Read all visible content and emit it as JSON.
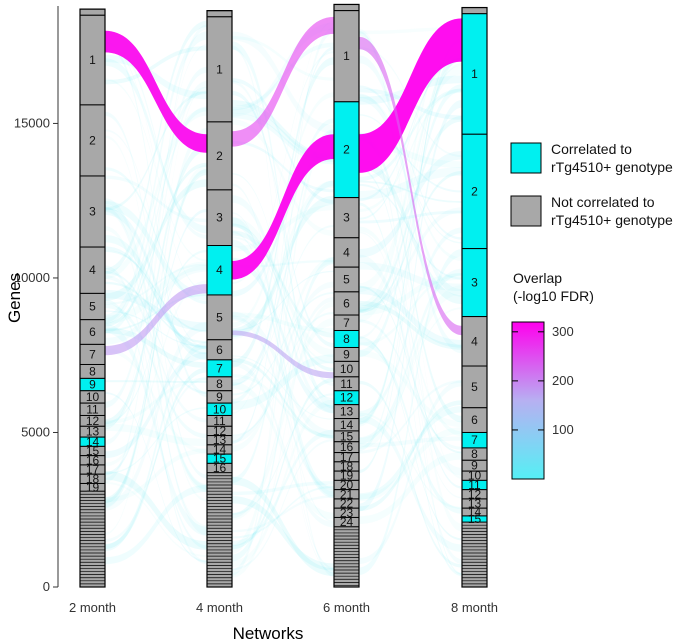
{
  "chart_data": {
    "type": "alluvial",
    "xlabel": "Networks",
    "ylabel": "Genes",
    "ylim": [
      0,
      18800
    ],
    "yticks": [
      0,
      5000,
      10000,
      15000
    ],
    "grid": false,
    "networks": [
      {
        "label": "2 month",
        "modules": [
          {
            "label": "1",
            "y0": 15600,
            "y1": 18500,
            "correlated": false
          },
          {
            "label": "2",
            "y0": 13300,
            "y1": 15600,
            "correlated": false
          },
          {
            "label": "3",
            "y0": 11000,
            "y1": 13300,
            "correlated": false
          },
          {
            "label": "4",
            "y0": 9500,
            "y1": 11000,
            "correlated": false
          },
          {
            "label": "5",
            "y0": 8650,
            "y1": 9500,
            "correlated": false
          },
          {
            "label": "6",
            "y0": 7850,
            "y1": 8650,
            "correlated": false
          },
          {
            "label": "7",
            "y0": 7200,
            "y1": 7850,
            "correlated": false
          },
          {
            "label": "8",
            "y0": 6750,
            "y1": 7200,
            "correlated": false
          },
          {
            "label": "9",
            "y0": 6350,
            "y1": 6750,
            "correlated": true
          },
          {
            "label": "10",
            "y0": 5950,
            "y1": 6350,
            "correlated": false
          },
          {
            "label": "11",
            "y0": 5550,
            "y1": 5950,
            "correlated": false
          },
          {
            "label": "12",
            "y0": 5200,
            "y1": 5550,
            "correlated": false
          },
          {
            "label": "13",
            "y0": 4850,
            "y1": 5200,
            "correlated": false
          },
          {
            "label": "14",
            "y0": 4550,
            "y1": 4850,
            "correlated": true
          },
          {
            "label": "15",
            "y0": 4250,
            "y1": 4550,
            "correlated": false
          },
          {
            "label": "16",
            "y0": 3950,
            "y1": 4250,
            "correlated": false
          },
          {
            "label": "17",
            "y0": 3650,
            "y1": 3950,
            "correlated": false
          },
          {
            "label": "18",
            "y0": 3350,
            "y1": 3650,
            "correlated": false
          },
          {
            "label": "19",
            "y0": 3100,
            "y1": 3350,
            "correlated": false
          }
        ]
      },
      {
        "label": "4 month",
        "modules": [
          {
            "label": "1",
            "y0": 15050,
            "y1": 18450,
            "correlated": false
          },
          {
            "label": "2",
            "y0": 12850,
            "y1": 15050,
            "correlated": false
          },
          {
            "label": "3",
            "y0": 11050,
            "y1": 12850,
            "correlated": false
          },
          {
            "label": "4",
            "y0": 9450,
            "y1": 11050,
            "correlated": true
          },
          {
            "label": "5",
            "y0": 8000,
            "y1": 9450,
            "correlated": false
          },
          {
            "label": "6",
            "y0": 7350,
            "y1": 8000,
            "correlated": false
          },
          {
            "label": "7",
            "y0": 6800,
            "y1": 7350,
            "correlated": true
          },
          {
            "label": "8",
            "y0": 6350,
            "y1": 6800,
            "correlated": false
          },
          {
            "label": "9",
            "y0": 5950,
            "y1": 6350,
            "correlated": false
          },
          {
            "label": "10",
            "y0": 5550,
            "y1": 5950,
            "correlated": true
          },
          {
            "label": "11",
            "y0": 5200,
            "y1": 5550,
            "correlated": false
          },
          {
            "label": "12",
            "y0": 4900,
            "y1": 5200,
            "correlated": false
          },
          {
            "label": "13",
            "y0": 4600,
            "y1": 4900,
            "correlated": false
          },
          {
            "label": "14",
            "y0": 4300,
            "y1": 4600,
            "correlated": false
          },
          {
            "label": "15",
            "y0": 4000,
            "y1": 4300,
            "correlated": true
          },
          {
            "label": "16",
            "y0": 3700,
            "y1": 4000,
            "correlated": false
          }
        ]
      },
      {
        "label": "6 month",
        "modules": [
          {
            "label": "1",
            "y0": 15700,
            "y1": 18650,
            "correlated": false
          },
          {
            "label": "2",
            "y0": 12600,
            "y1": 15700,
            "correlated": true
          },
          {
            "label": "3",
            "y0": 11300,
            "y1": 12600,
            "correlated": false
          },
          {
            "label": "4",
            "y0": 10350,
            "y1": 11300,
            "correlated": false
          },
          {
            "label": "5",
            "y0": 9550,
            "y1": 10350,
            "correlated": false
          },
          {
            "label": "6",
            "y0": 8800,
            "y1": 9550,
            "correlated": false
          },
          {
            "label": "7",
            "y0": 8300,
            "y1": 8800,
            "correlated": false
          },
          {
            "label": "8",
            "y0": 7750,
            "y1": 8300,
            "correlated": true
          },
          {
            "label": "9",
            "y0": 7300,
            "y1": 7750,
            "correlated": false
          },
          {
            "label": "10",
            "y0": 6800,
            "y1": 7300,
            "correlated": false
          },
          {
            "label": "11",
            "y0": 6350,
            "y1": 6800,
            "correlated": false
          },
          {
            "label": "12",
            "y0": 5900,
            "y1": 6350,
            "correlated": true
          },
          {
            "label": "13",
            "y0": 5450,
            "y1": 5900,
            "correlated": false
          },
          {
            "label": "14",
            "y0": 5050,
            "y1": 5450,
            "correlated": false
          },
          {
            "label": "15",
            "y0": 4700,
            "y1": 5050,
            "correlated": false
          },
          {
            "label": "16",
            "y0": 4350,
            "y1": 4700,
            "correlated": false
          },
          {
            "label": "17",
            "y0": 4050,
            "y1": 4350,
            "correlated": false
          },
          {
            "label": "18",
            "y0": 3750,
            "y1": 4050,
            "correlated": false
          },
          {
            "label": "19",
            "y0": 3450,
            "y1": 3750,
            "correlated": false
          },
          {
            "label": "20",
            "y0": 3150,
            "y1": 3450,
            "correlated": false
          },
          {
            "label": "21",
            "y0": 2850,
            "y1": 3150,
            "correlated": false
          },
          {
            "label": "22",
            "y0": 2550,
            "y1": 2850,
            "correlated": false
          },
          {
            "label": "23",
            "y0": 2250,
            "y1": 2550,
            "correlated": false
          },
          {
            "label": "24",
            "y0": 1950,
            "y1": 2250,
            "correlated": false
          }
        ]
      },
      {
        "label": "8 month",
        "modules": [
          {
            "label": "1",
            "y0": 14650,
            "y1": 18550,
            "correlated": true
          },
          {
            "label": "2",
            "y0": 10950,
            "y1": 14650,
            "correlated": true
          },
          {
            "label": "3",
            "y0": 8750,
            "y1": 10950,
            "correlated": true
          },
          {
            "label": "4",
            "y0": 7150,
            "y1": 8750,
            "correlated": false
          },
          {
            "label": "5",
            "y0": 5800,
            "y1": 7150,
            "correlated": false
          },
          {
            "label": "6",
            "y0": 5000,
            "y1": 5800,
            "correlated": false
          },
          {
            "label": "7",
            "y0": 4500,
            "y1": 5000,
            "correlated": true
          },
          {
            "label": "8",
            "y0": 4100,
            "y1": 4500,
            "correlated": false
          },
          {
            "label": "9",
            "y0": 3750,
            "y1": 4100,
            "correlated": false
          },
          {
            "label": "10",
            "y0": 3450,
            "y1": 3750,
            "correlated": false
          },
          {
            "label": "11",
            "y0": 3150,
            "y1": 3450,
            "correlated": true
          },
          {
            "label": "12",
            "y0": 2850,
            "y1": 3150,
            "correlated": false
          },
          {
            "label": "13",
            "y0": 2550,
            "y1": 2850,
            "correlated": false
          },
          {
            "label": "14",
            "y0": 2300,
            "y1": 2550,
            "correlated": false
          },
          {
            "label": "15",
            "y0": 2100,
            "y1": 2300,
            "correlated": true
          }
        ]
      }
    ],
    "flows": [
      {
        "from": "2 month",
        "to": "4 month",
        "from_y": [
          17300,
          18000
        ],
        "to_y": [
          14050,
          14650
        ],
        "overlap": 310
      },
      {
        "from": "2 month",
        "to": "4 month",
        "from_y": [
          7500,
          7800
        ],
        "to_y": [
          9500,
          9800
        ],
        "overlap": 180
      },
      {
        "from": "4 month",
        "to": "6 month",
        "from_y": [
          14250,
          14750
        ],
        "to_y": [
          17900,
          18450
        ],
        "overlap": 260
      },
      {
        "from": "4 month",
        "to": "6 month",
        "from_y": [
          9950,
          10550
        ],
        "to_y": [
          13850,
          14650
        ],
        "overlap": 315
      },
      {
        "from": "4 month",
        "to": "6 month",
        "from_y": [
          8150,
          8300
        ],
        "to_y": [
          6750,
          6950
        ],
        "overlap": 170
      },
      {
        "from": "6 month",
        "to": "8 month",
        "from_y": [
          13400,
          14650
        ],
        "to_y": [
          17000,
          18400
        ],
        "overlap": 320
      },
      {
        "from": "6 month",
        "to": "8 month",
        "from_y": [
          17400,
          17800
        ],
        "to_y": [
          8150,
          8450
        ],
        "overlap": 230
      }
    ],
    "legend": {
      "categories": [
        {
          "label": "Correlated to rTg4510+ genotype",
          "lines": [
            "Correlated to",
            "rTg4510+ genotype"
          ],
          "color": "#00f0f0"
        },
        {
          "label": "Not correlated to rTg4510+ genotype",
          "lines": [
            "Not correlated to",
            "rTg4510+ genotype"
          ],
          "color": "#a8a8a8"
        }
      ],
      "gradient_title_lines": [
        "Overlap",
        "(-log10 FDR)"
      ],
      "gradient_ticks": [
        100,
        200,
        300
      ],
      "gradient_range": [
        0,
        320
      ],
      "gradient_colors": {
        "low": "#55f0f5",
        "mid": "#b7b0f2",
        "high": "#ff00ee"
      }
    }
  }
}
